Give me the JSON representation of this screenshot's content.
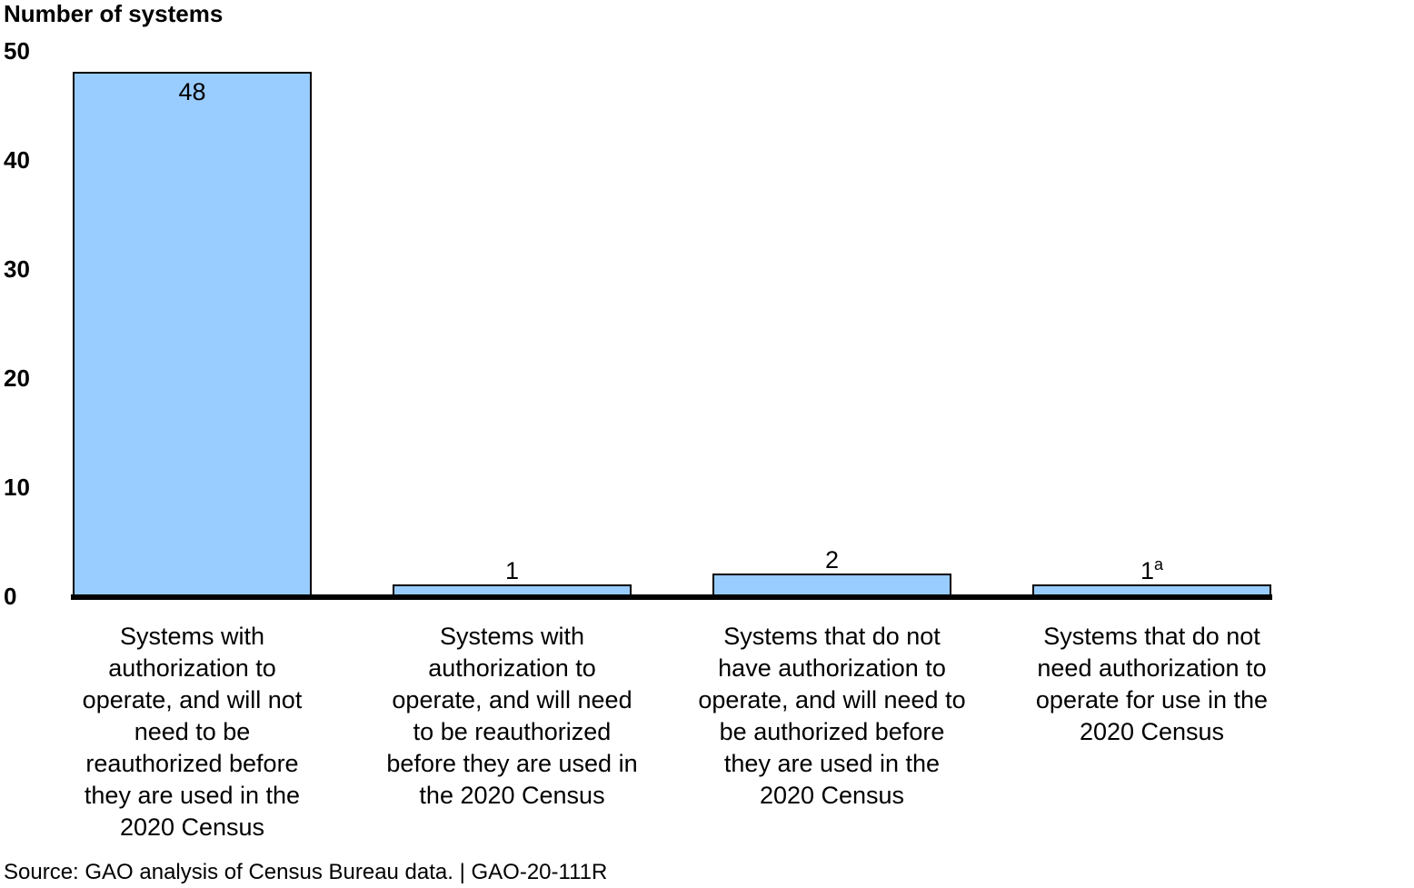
{
  "chart_data": {
    "type": "bar",
    "ylabel": "Number of systems",
    "ylim": [
      0,
      50
    ],
    "yticks": [
      "0",
      "10",
      "20",
      "30",
      "40",
      "50"
    ],
    "categories": [
      [
        "Systems with",
        "authorization to",
        "operate, and will not",
        "need to be",
        "reauthorized before",
        "they are used in the",
        "2020 Census"
      ],
      [
        "Systems with",
        "authorization to",
        "operate, and will need",
        "to be reauthorized",
        "before they are used in",
        "the 2020 Census"
      ],
      [
        "Systems that do not",
        "have authorization to",
        "operate, and will need to",
        "be authorized before",
        "they are used in the",
        "2020 Census"
      ],
      [
        "Systems that do not",
        "need authorization to",
        "operate for use in the",
        "2020 Census"
      ]
    ],
    "values": [
      48,
      1,
      2,
      1
    ],
    "data_labels": [
      "48",
      "1",
      "2",
      "1"
    ],
    "footnote_marks": [
      "",
      "",
      "",
      "a"
    ],
    "grid": false,
    "legend": "none",
    "colors": {
      "bar_fill": "#99ccff",
      "bar_stroke": "#000000",
      "axis": "#000000"
    }
  },
  "source": "Source: GAO analysis of Census Bureau data.  |  GAO-20-111R"
}
